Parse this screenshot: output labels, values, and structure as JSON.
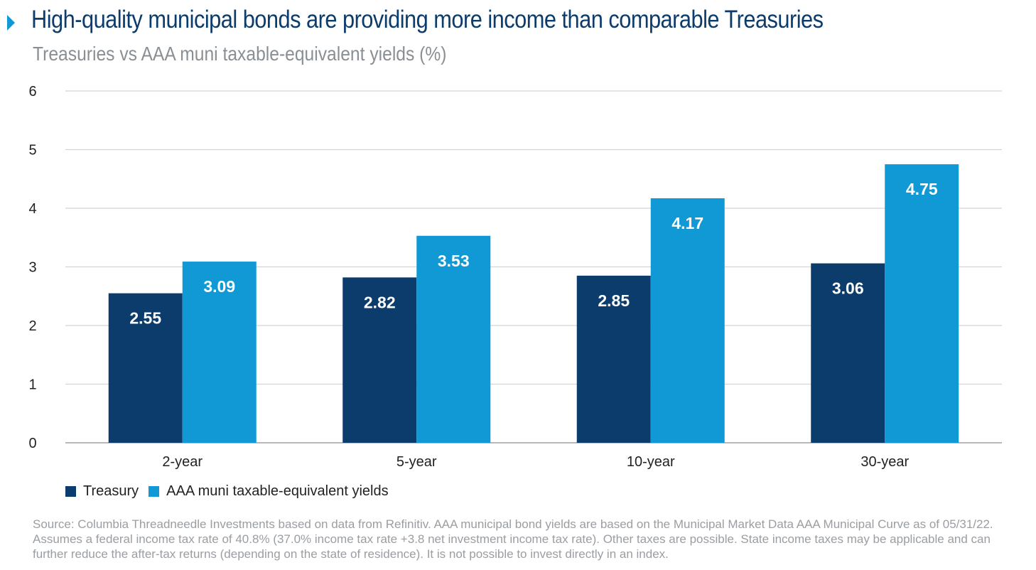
{
  "header": {
    "title": "High-quality municipal bonds are providing more income than comparable Treasuries",
    "subtitle": "Treasuries vs AAA muni taxable-equivalent yields (%)"
  },
  "chart_data": {
    "type": "bar",
    "categories": [
      "2-year",
      "5-year",
      "10-year",
      "30-year"
    ],
    "series": [
      {
        "name": "Treasury",
        "values": [
          2.55,
          2.82,
          2.85,
          3.06
        ],
        "labels": [
          "2.55",
          "2.82",
          "2.85",
          "3.06"
        ],
        "color": "#0b3c6b"
      },
      {
        "name": "AAA muni taxable-equivalent yields",
        "values": [
          3.09,
          3.53,
          4.17,
          4.75
        ],
        "labels": [
          "3.09",
          "3.53",
          "4.17",
          "4.75"
        ],
        "color": "#1199d6"
      }
    ],
    "ylim": [
      0,
      6
    ],
    "yticks": [
      "0",
      "1",
      "2",
      "3",
      "4",
      "5",
      "6"
    ],
    "grid": true,
    "legend": "bottom-left"
  },
  "footer": {
    "source": "Source: Columbia Threadneedle Investments based on data from Refinitiv. AAA municipal bond yields are based on the Municipal Market Data AAA Municipal Curve as of 05/31/22. Assumes a federal income tax rate of 40.8% (37.0% income tax rate +3.8 net investment income tax rate). Other taxes are possible. State income taxes may be applicable and can further reduce the after-tax returns (depending on the state of residence). It is not possible to invest directly in an index."
  },
  "colors": {
    "grid": "#d4d4d4",
    "axis": "#a0a0a0"
  }
}
